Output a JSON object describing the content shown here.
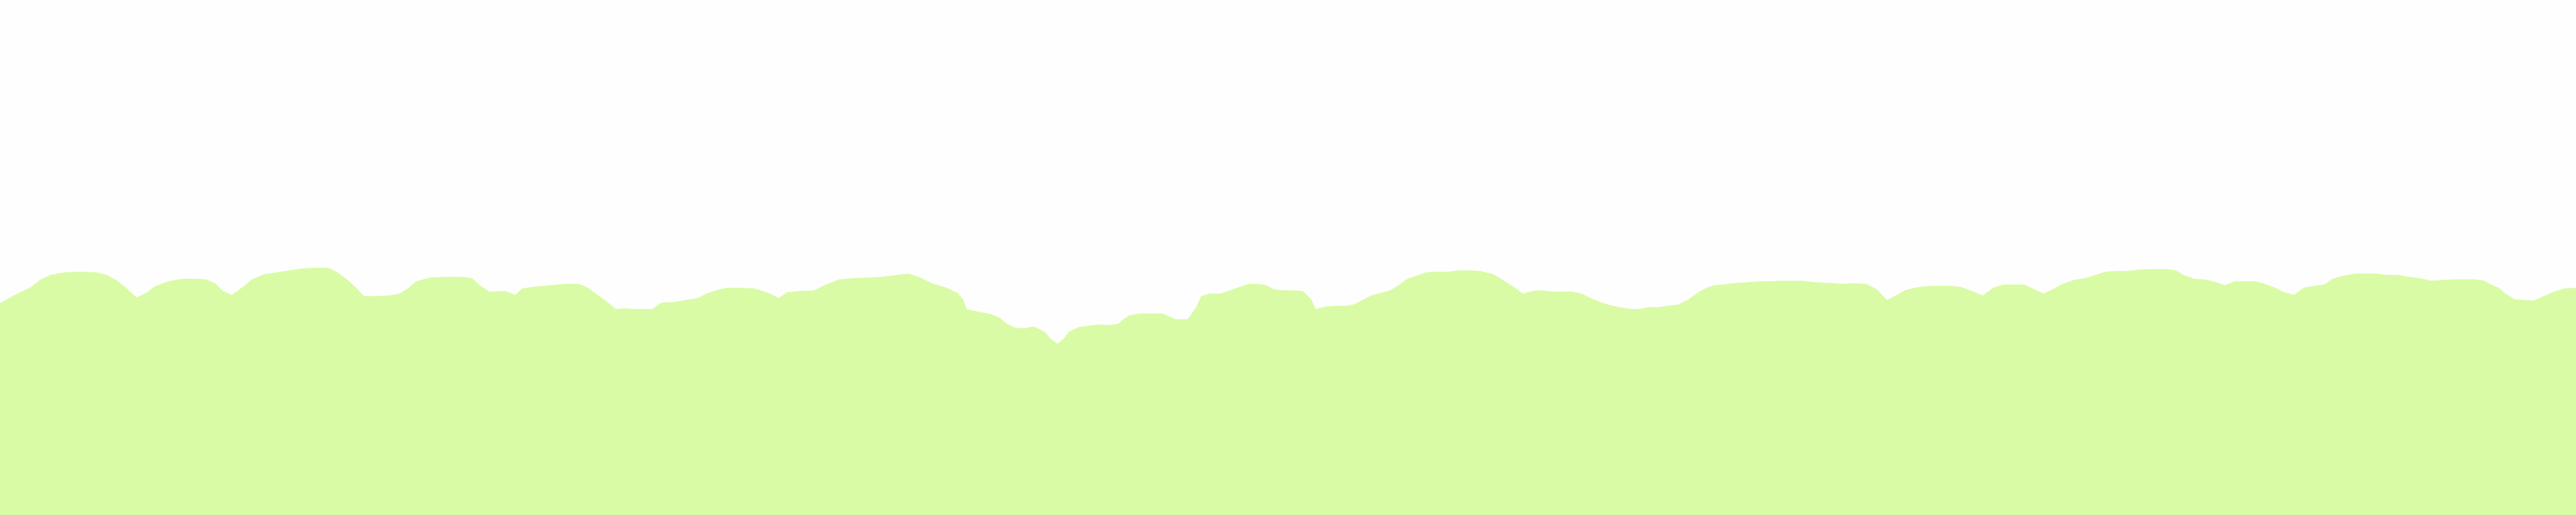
{
  "scene": {
    "background_color": "#fefefe",
    "ground_color": "#d9fba6",
    "description_shape": "hills-silhouette"
  }
}
